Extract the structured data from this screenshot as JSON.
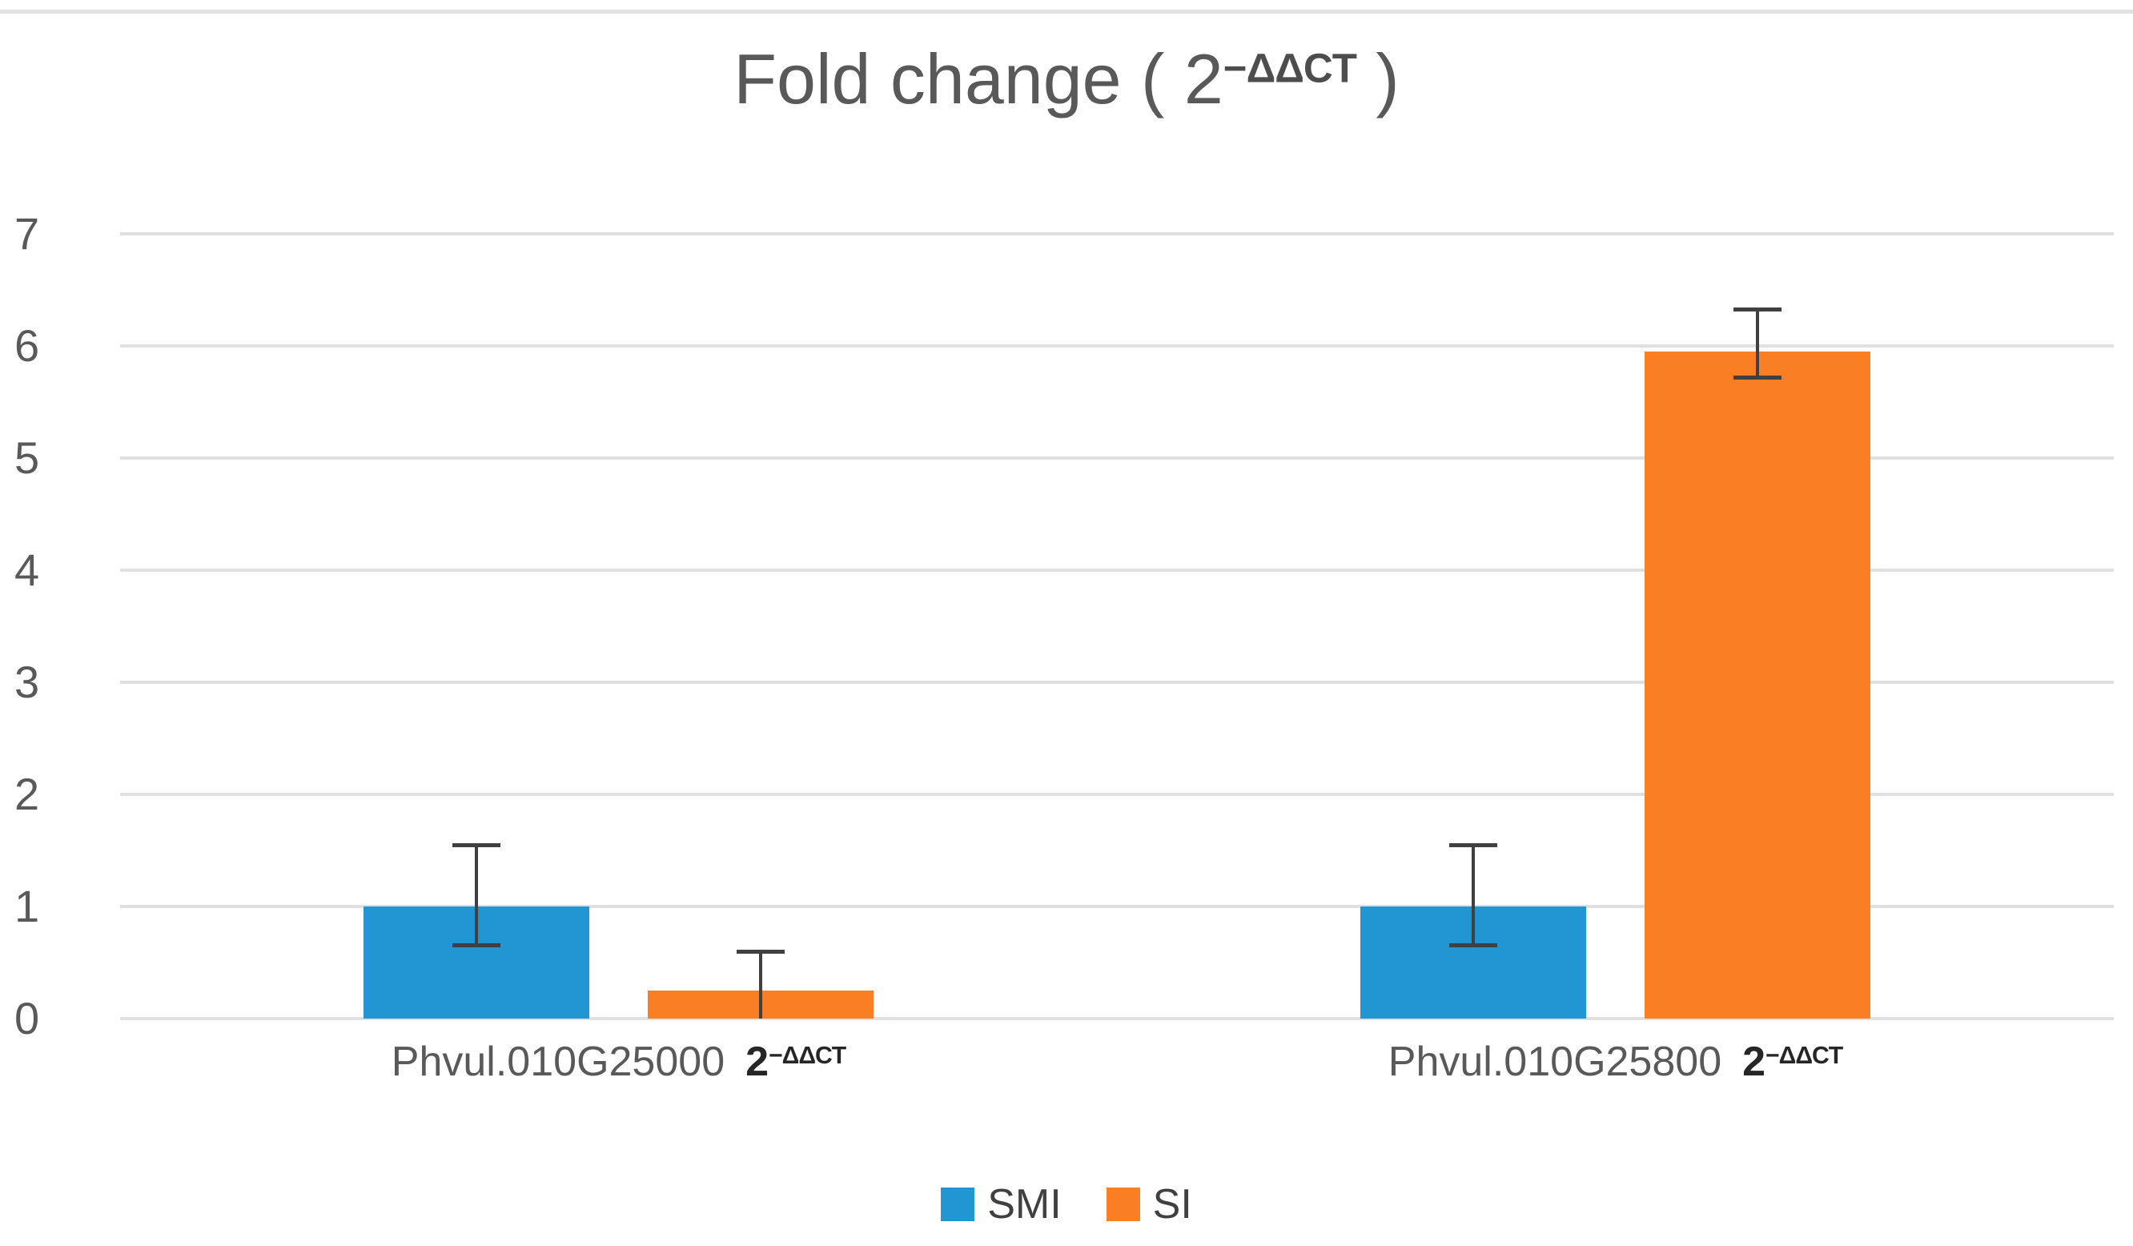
{
  "chart_data": {
    "type": "bar",
    "title": "Fold change ( 2−ΔΔCT )",
    "title_parts": {
      "prefix": "Fold change ( 2",
      "sup": "−ΔΔCT",
      "suffix": " )"
    },
    "categories": [
      {
        "name": "Phvul.010G25000",
        "formula_base": "2",
        "formula_sup": "−ΔΔCT"
      },
      {
        "name": "Phvul.010G25800",
        "formula_base": "2",
        "formula_sup": "−ΔΔCT"
      }
    ],
    "series": [
      {
        "name": "SMI",
        "color": "#2196d3",
        "values": [
          1.0,
          1.0
        ],
        "error_hi": [
          1.55,
          1.55
        ],
        "error_lo": [
          0.66,
          0.66
        ]
      },
      {
        "name": "SI",
        "color": "#fa7e24",
        "values": [
          0.25,
          5.95
        ],
        "error_hi": [
          0.6,
          6.33
        ],
        "error_lo": [
          0.0,
          5.72
        ]
      }
    ],
    "ylim": [
      0,
      7
    ],
    "yticks": [
      0,
      1,
      2,
      3,
      4,
      5,
      6,
      7
    ],
    "grid": true,
    "legend_position": "bottom",
    "colors": {
      "gridline": "#e0e0e0",
      "axis_text": "#595959",
      "error_bar": "#404040",
      "title_text": "#595959",
      "category_formula": "#262626",
      "legend_text": "#404040",
      "top_divider": "#e2e2e2"
    }
  }
}
